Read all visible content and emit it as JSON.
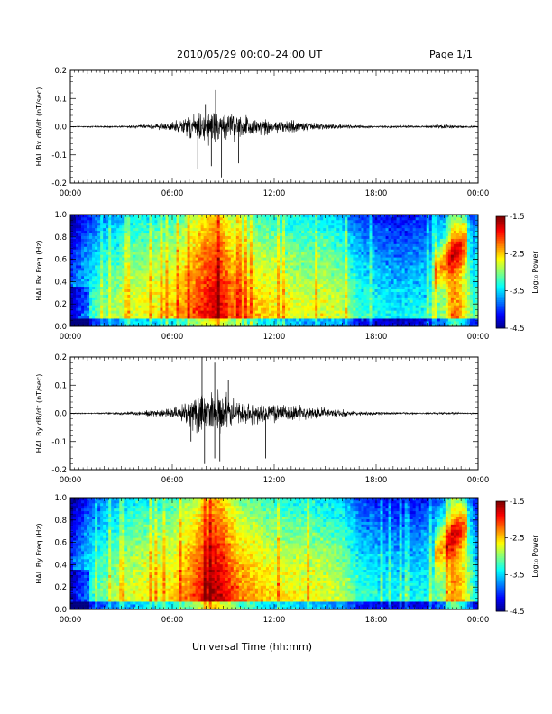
{
  "header": {
    "title": "2010/05/29  00:00–24:00 UT",
    "page": "Page 1/1"
  },
  "footer": {
    "xlabel": "Universal Time (hh:mm)"
  },
  "colorbar": {
    "ticks": [
      "-1.5",
      "-2.5",
      "-3.5",
      "-4.5"
    ],
    "label": "Log₁₀ Power",
    "range": [
      -4.5,
      -1.5
    ]
  },
  "chart_data": [
    {
      "type": "line",
      "ylabel": "HAL Bx dB/dt (nT/sec)",
      "x_ticks": [
        "00:00",
        "06:00",
        "12:00",
        "18:00",
        "00:00"
      ],
      "y_ticks": [
        "0.2",
        "0.1",
        "0.0",
        "-0.1",
        "-0.2"
      ],
      "xlim_hours": [
        0,
        24
      ],
      "ylim": [
        -0.2,
        0.2
      ],
      "envelope": {
        "x_hours": [
          0,
          3,
          5,
          6,
          7,
          7.5,
          8,
          8.5,
          9,
          9.5,
          10,
          11,
          12,
          13,
          14,
          15,
          16,
          18,
          20,
          22,
          23,
          24
        ],
        "amplitude": [
          0.002,
          0.004,
          0.01,
          0.02,
          0.05,
          0.06,
          0.07,
          0.08,
          0.07,
          0.06,
          0.05,
          0.04,
          0.03,
          0.025,
          0.02,
          0.015,
          0.01,
          0.005,
          0.005,
          0.008,
          0.006,
          0.003
        ]
      },
      "spikes": [
        {
          "x_hours": 8.55,
          "value": 0.13
        },
        {
          "x_hours": 8.9,
          "value": -0.18
        },
        {
          "x_hours": 7.5,
          "value": -0.15
        },
        {
          "x_hours": 8.3,
          "value": -0.14
        },
        {
          "x_hours": 7.95,
          "value": 0.08
        },
        {
          "x_hours": 9.9,
          "value": -0.13
        }
      ]
    },
    {
      "type": "heatmap",
      "ylabel": "HAL Bx Freq (Hz)",
      "x_ticks": [
        "00:00",
        "06:00",
        "12:00",
        "18:00",
        "00:00"
      ],
      "y_ticks": [
        "1.0",
        "0.8",
        "0.6",
        "0.4",
        "0.2",
        "0.0"
      ],
      "xlim_hours": [
        0,
        24
      ],
      "ylim": [
        0,
        1.0
      ],
      "zlim": [
        -4.5,
        -1.5
      ],
      "profile_x_hours": [
        0,
        1,
        2,
        3,
        4,
        5,
        6,
        7,
        7.5,
        8,
        8.5,
        9,
        9.5,
        10,
        11,
        12,
        13,
        14,
        15,
        16,
        16.5,
        17,
        18,
        19,
        20,
        21,
        22,
        22.5,
        23,
        23.5,
        24
      ],
      "profile_level": [
        -4.1,
        -3.6,
        -3.3,
        -3.1,
        -2.95,
        -2.9,
        -2.8,
        -2.5,
        -2.3,
        -2.15,
        -2.0,
        -2.15,
        -2.4,
        -2.6,
        -2.75,
        -2.85,
        -2.95,
        -3.0,
        -3.0,
        -3.1,
        -3.3,
        -3.5,
        -3.6,
        -3.7,
        -3.7,
        -3.6,
        -3.2,
        -2.5,
        -2.7,
        -3.2,
        -3.8
      ]
    },
    {
      "type": "line",
      "ylabel": "HAL By dB/dt (nT/sec)",
      "x_ticks": [
        "00:00",
        "06:00",
        "12:00",
        "18:00",
        "00:00"
      ],
      "y_ticks": [
        "0.2",
        "0.1",
        "0.0",
        "-0.1",
        "-0.2"
      ],
      "xlim_hours": [
        0,
        24
      ],
      "ylim": [
        -0.2,
        0.2
      ],
      "envelope": {
        "x_hours": [
          0,
          2,
          3,
          4,
          5,
          6,
          6.5,
          7,
          7.5,
          8,
          8.5,
          9,
          9.5,
          10,
          11,
          12,
          13,
          14,
          15,
          16,
          18,
          20,
          22,
          23,
          24
        ],
        "amplitude": [
          0.002,
          0.003,
          0.006,
          0.01,
          0.015,
          0.02,
          0.04,
          0.06,
          0.08,
          0.09,
          0.09,
          0.085,
          0.07,
          0.055,
          0.045,
          0.04,
          0.035,
          0.03,
          0.025,
          0.015,
          0.006,
          0.004,
          0.005,
          0.004,
          0.002
        ]
      },
      "spikes": [
        {
          "x_hours": 7.75,
          "value": 0.2
        },
        {
          "x_hours": 8.05,
          "value": 0.2
        },
        {
          "x_hours": 8.5,
          "value": 0.18
        },
        {
          "x_hours": 7.9,
          "value": -0.18
        },
        {
          "x_hours": 8.8,
          "value": -0.17
        },
        {
          "x_hours": 8.5,
          "value": -0.16
        },
        {
          "x_hours": 11.5,
          "value": -0.16
        },
        {
          "x_hours": 7.1,
          "value": -0.1
        },
        {
          "x_hours": 9.3,
          "value": 0.12
        }
      ]
    },
    {
      "type": "heatmap",
      "ylabel": "HAL By Freq (Hz)",
      "x_ticks": [
        "00:00",
        "06:00",
        "12:00",
        "18:00",
        "00:00"
      ],
      "y_ticks": [
        "1.0",
        "0.8",
        "0.6",
        "0.4",
        "0.2",
        "0.0"
      ],
      "xlim_hours": [
        0,
        24
      ],
      "ylim": [
        0,
        1.0
      ],
      "zlim": [
        -4.5,
        -1.5
      ],
      "profile_x_hours": [
        0,
        1,
        2,
        3,
        4,
        5,
        6,
        7,
        7.5,
        8,
        8.5,
        9,
        9.5,
        10,
        11,
        12,
        13,
        14,
        15,
        16,
        16.5,
        17,
        18,
        19,
        20,
        21,
        22,
        22.5,
        23,
        23.5,
        24
      ],
      "profile_level": [
        -4.1,
        -3.6,
        -3.3,
        -3.1,
        -2.95,
        -2.9,
        -2.8,
        -2.5,
        -2.3,
        -2.1,
        -1.9,
        -2.1,
        -2.35,
        -2.55,
        -2.7,
        -2.85,
        -2.9,
        -2.95,
        -3.0,
        -3.1,
        -3.3,
        -3.5,
        -3.6,
        -3.7,
        -3.7,
        -3.6,
        -3.2,
        -2.5,
        -2.7,
        -3.2,
        -3.8
      ]
    }
  ]
}
